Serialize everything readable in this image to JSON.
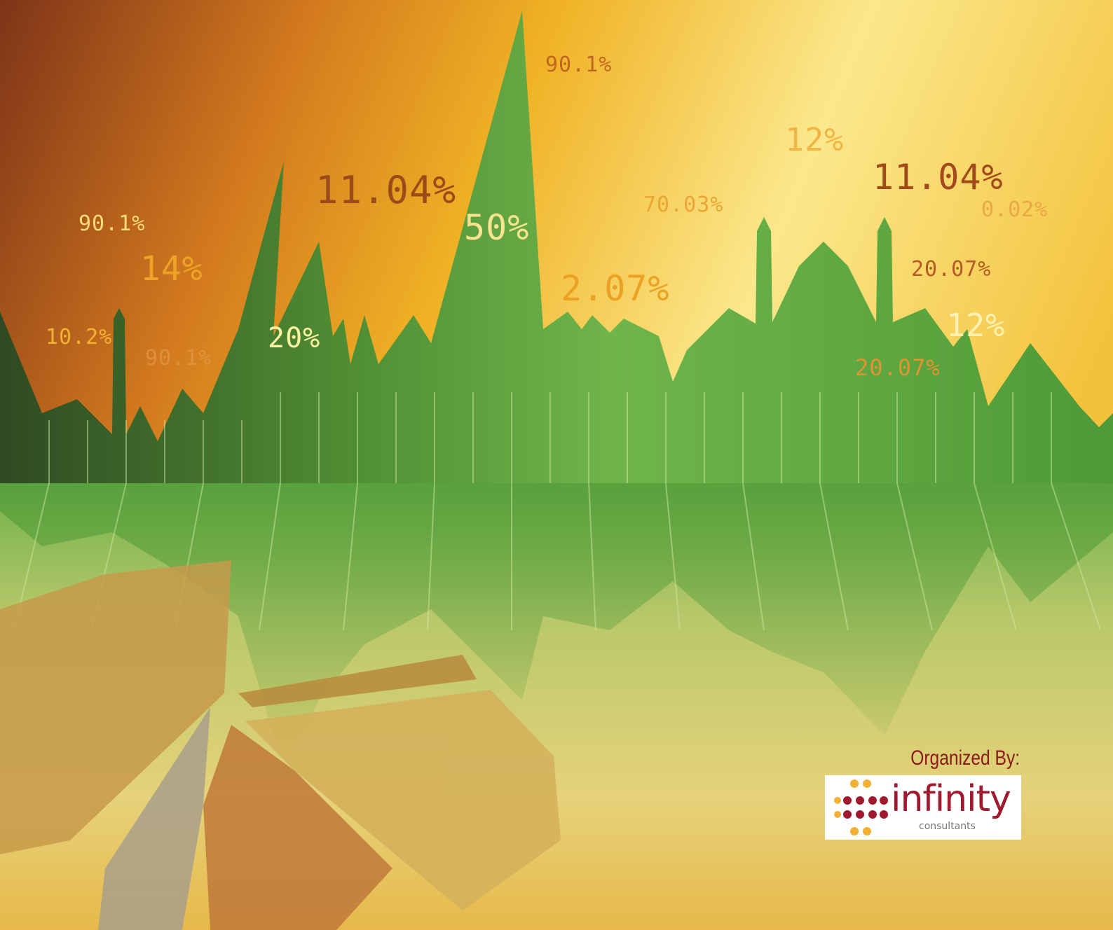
{
  "labels": [
    "90.1%",
    "90.1%",
    "14%",
    "11.04%",
    "50%",
    "10.2%",
    "90.1%",
    "20%",
    "2.07%",
    "70.03%",
    "12%",
    "11.04%",
    "0.02%",
    "20.07%",
    "12%",
    "20.07%"
  ],
  "organizer": {
    "heading": "Organized By:",
    "logo_name": "infinity",
    "logo_tagline": "consultants"
  }
}
